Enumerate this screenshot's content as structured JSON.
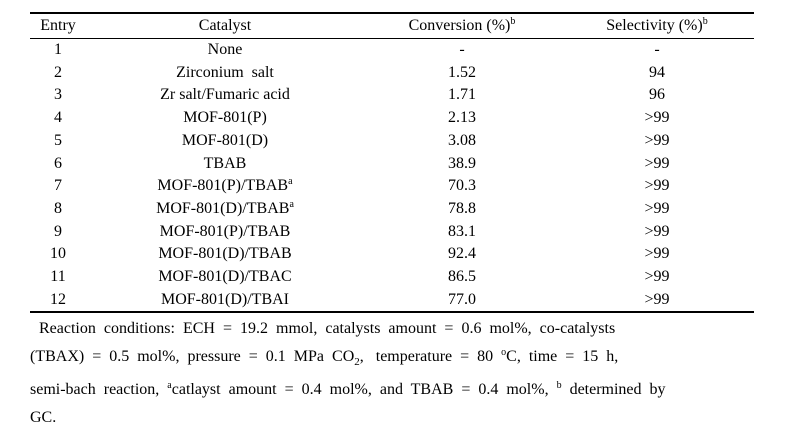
{
  "table": {
    "headers": {
      "entry": "Entry",
      "catalyst": "Catalyst",
      "conversion": "Conversion (%)",
      "conversion_sup": "b",
      "selectivity": "Selectivity (%)",
      "selectivity_sup": "b"
    },
    "rows": [
      {
        "entry": "1",
        "catalyst": "None",
        "sup": "",
        "conversion": "-",
        "selectivity": "-"
      },
      {
        "entry": "2",
        "catalyst": "Zirconium  salt",
        "sup": "",
        "conversion": "1.52",
        "selectivity": "94"
      },
      {
        "entry": "3",
        "catalyst": "Zr salt/Fumaric acid",
        "sup": "",
        "conversion": "1.71",
        "selectivity": "96"
      },
      {
        "entry": "4",
        "catalyst": "MOF-801(P)",
        "sup": "",
        "conversion": "2.13",
        "selectivity": ">99"
      },
      {
        "entry": "5",
        "catalyst": "MOF-801(D)",
        "sup": "",
        "conversion": "3.08",
        "selectivity": ">99"
      },
      {
        "entry": "6",
        "catalyst": "TBAB",
        "sup": "",
        "conversion": "38.9",
        "selectivity": ">99"
      },
      {
        "entry": "7",
        "catalyst": "MOF-801(P)/TBAB",
        "sup": "a",
        "conversion": "70.3",
        "selectivity": ">99"
      },
      {
        "entry": "8",
        "catalyst": "MOF-801(D)/TBAB",
        "sup": "a",
        "conversion": "78.8",
        "selectivity": ">99"
      },
      {
        "entry": "9",
        "catalyst": "MOF-801(P)/TBAB",
        "sup": "",
        "conversion": "83.1",
        "selectivity": ">99"
      },
      {
        "entry": "10",
        "catalyst": "MOF-801(D)/TBAB",
        "sup": "",
        "conversion": "92.4",
        "selectivity": ">99"
      },
      {
        "entry": "11",
        "catalyst": "MOF-801(D)/TBAC",
        "sup": "",
        "conversion": "86.5",
        "selectivity": ">99"
      },
      {
        "entry": "12",
        "catalyst": "MOF-801(D)/TBAI",
        "sup": "",
        "conversion": "77.0",
        "selectivity": ">99"
      }
    ]
  },
  "footnote": {
    "line1": "Reaction  conditions:  ECH  =  19.2  mmol,  catalysts  amount  =  0.6  mol%,  co-catalysts",
    "line2a": "(TBAX)  =  0.5  mol%,  pressure  =  0.1  MPa  CO",
    "co2_sub": "2",
    "line2b": ",   temperature  =  80  ",
    "degree": "o",
    "line2c": "C,  time  =  15  h,",
    "line3a": "semi-bach  reaction,  ",
    "a_mark": "a",
    "line3b": "catlayst  amount  =  0.4  mol%,  and  TBAB  =  0.4  mol%,  ",
    "b_mark": "b",
    "line3c": "  determined  by",
    "line4": "GC."
  }
}
